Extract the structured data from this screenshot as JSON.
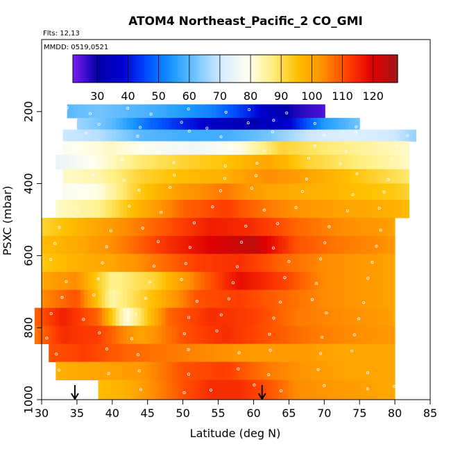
{
  "chart_data": {
    "type": "heatmap",
    "title": "ATOM4 Northeast_Pacific_2 CO_GMI",
    "subtitle_flights": "Flts: 12,13",
    "subtitle_dates": "MMDD: 0519,0521",
    "xlabel": "Latitude (deg N)",
    "ylabel": "PSXC (mbar)",
    "xlim": [
      30,
      85
    ],
    "ylim": [
      1000,
      0
    ],
    "xticks": [
      "30",
      "35",
      "40",
      "45",
      "50",
      "55",
      "60",
      "65",
      "70",
      "75",
      "80",
      "85"
    ],
    "yticks": [
      "200",
      "400",
      "600",
      "800",
      "1000"
    ],
    "colorbar": {
      "range": [
        22,
        128
      ],
      "ticks": [
        "30",
        "40",
        "50",
        "60",
        "70",
        "80",
        "90",
        "100",
        "110",
        "120"
      ],
      "colors": [
        "#7a1cf0",
        "#0000a8",
        "#0000d0",
        "#0050ff",
        "#1a9aff",
        "#7cc8ff",
        "#d8ecff",
        "#fffff0",
        "#ffee80",
        "#ffc000",
        "#ff9000",
        "#ff4000",
        "#e00000",
        "#a01818"
      ]
    },
    "arrows_lat": [
      34.7,
      61.2
    ],
    "rows": [
      {
        "p": 200,
        "lat": [
          33.6,
          38,
          42,
          46,
          50,
          54,
          58,
          62,
          66,
          70
        ],
        "values": [
          60,
          62,
          60,
          58,
          55,
          52,
          45,
          36,
          28,
          25
        ]
      },
      {
        "p": 235,
        "lat": [
          35,
          40,
          45,
          50,
          55,
          60,
          65,
          70,
          75
        ],
        "values": [
          66,
          60,
          50,
          42,
          35,
          32,
          38,
          55,
          62
        ]
      },
      {
        "p": 265,
        "lat": [
          33,
          38,
          44,
          50,
          56,
          62,
          68,
          74,
          80,
          83
        ],
        "values": [
          70,
          68,
          60,
          58,
          58,
          62,
          70,
          72,
          70,
          65
        ]
      },
      {
        "p": 300,
        "lat": [
          33,
          40,
          46,
          52,
          58,
          64,
          70,
          76,
          82
        ],
        "values": [
          78,
          82,
          78,
          76,
          80,
          92,
          88,
          85,
          82
        ]
      },
      {
        "p": 340,
        "lat": [
          32,
          38,
          44,
          50,
          56,
          62,
          68,
          74,
          80,
          82
        ],
        "values": [
          74,
          80,
          88,
          92,
          95,
          100,
          92,
          88,
          84,
          82
        ]
      },
      {
        "p": 380,
        "lat": [
          33,
          38,
          44,
          50,
          56,
          62,
          68,
          74,
          80,
          82
        ],
        "values": [
          82,
          84,
          92,
          96,
          98,
          104,
          100,
          95,
          90,
          88
        ]
      },
      {
        "p": 420,
        "lat": [
          33,
          38,
          44,
          50,
          56,
          62,
          68,
          74,
          80,
          82
        ],
        "values": [
          78,
          80,
          94,
          102,
          106,
          100,
          98,
          96,
          94,
          92
        ]
      },
      {
        "p": 470,
        "lat": [
          32,
          38,
          44,
          50,
          56,
          62,
          68,
          74,
          80,
          82
        ],
        "values": [
          82,
          86,
          98,
          108,
          112,
          106,
          102,
          100,
          98,
          96
        ]
      },
      {
        "p": 520,
        "lat": [
          30,
          36,
          42,
          48,
          54,
          60,
          66,
          72,
          78,
          80
        ],
        "values": [
          92,
          98,
          104,
          110,
          116,
          114,
          108,
          104,
          102,
          100
        ]
      },
      {
        "p": 570,
        "lat": [
          30,
          36,
          42,
          48,
          54,
          60,
          66,
          72,
          78,
          80
        ],
        "values": [
          96,
          100,
          106,
          114,
          120,
          124,
          110,
          106,
          104,
          102
        ]
      },
      {
        "p": 620,
        "lat": [
          30,
          35,
          40,
          46,
          52,
          58,
          64,
          70,
          76,
          80
        ],
        "values": [
          94,
          98,
          100,
          106,
          112,
          114,
          108,
          104,
          102,
          100
        ]
      },
      {
        "p": 670,
        "lat": [
          30,
          35,
          40,
          46,
          52,
          58,
          64,
          70,
          76,
          80
        ],
        "values": [
          100,
          104,
          86,
          92,
          106,
          118,
          112,
          104,
          102,
          100
        ]
      },
      {
        "p": 720,
        "lat": [
          30,
          35,
          40,
          46,
          52,
          58,
          64,
          70,
          76,
          80
        ],
        "values": [
          104,
          110,
          84,
          96,
          110,
          112,
          108,
          104,
          102,
          100
        ]
      },
      {
        "p": 770,
        "lat": [
          29,
          33,
          38,
          42,
          48,
          54,
          60,
          66,
          72,
          78,
          80
        ],
        "values": [
          108,
          116,
          108,
          80,
          108,
          114,
          112,
          106,
          104,
          102,
          100
        ]
      },
      {
        "p": 820,
        "lat": [
          29,
          33,
          38,
          44,
          50,
          56,
          62,
          68,
          74,
          80
        ],
        "values": [
          106,
          114,
          112,
          100,
          110,
          114,
          110,
          106,
          104,
          102
        ]
      },
      {
        "p": 870,
        "lat": [
          31,
          36,
          42,
          48,
          54,
          60,
          66,
          72,
          78,
          80
        ],
        "values": [
          110,
          112,
          108,
          106,
          104,
          102,
          102,
          100,
          100,
          100
        ]
      },
      {
        "p": 920,
        "lat": [
          32,
          38,
          44,
          50,
          56,
          62,
          68,
          74,
          80
        ],
        "values": [
          98,
          100,
          102,
          110,
          112,
          106,
          102,
          100,
          100
        ]
      },
      {
        "p": 970,
        "lat": [
          38,
          42,
          46,
          50,
          54,
          58,
          62,
          66,
          72,
          78,
          80
        ],
        "values": [
          96,
          98,
          104,
          110,
          114,
          114,
          110,
          104,
          102,
          100,
          100
        ]
      }
    ]
  }
}
